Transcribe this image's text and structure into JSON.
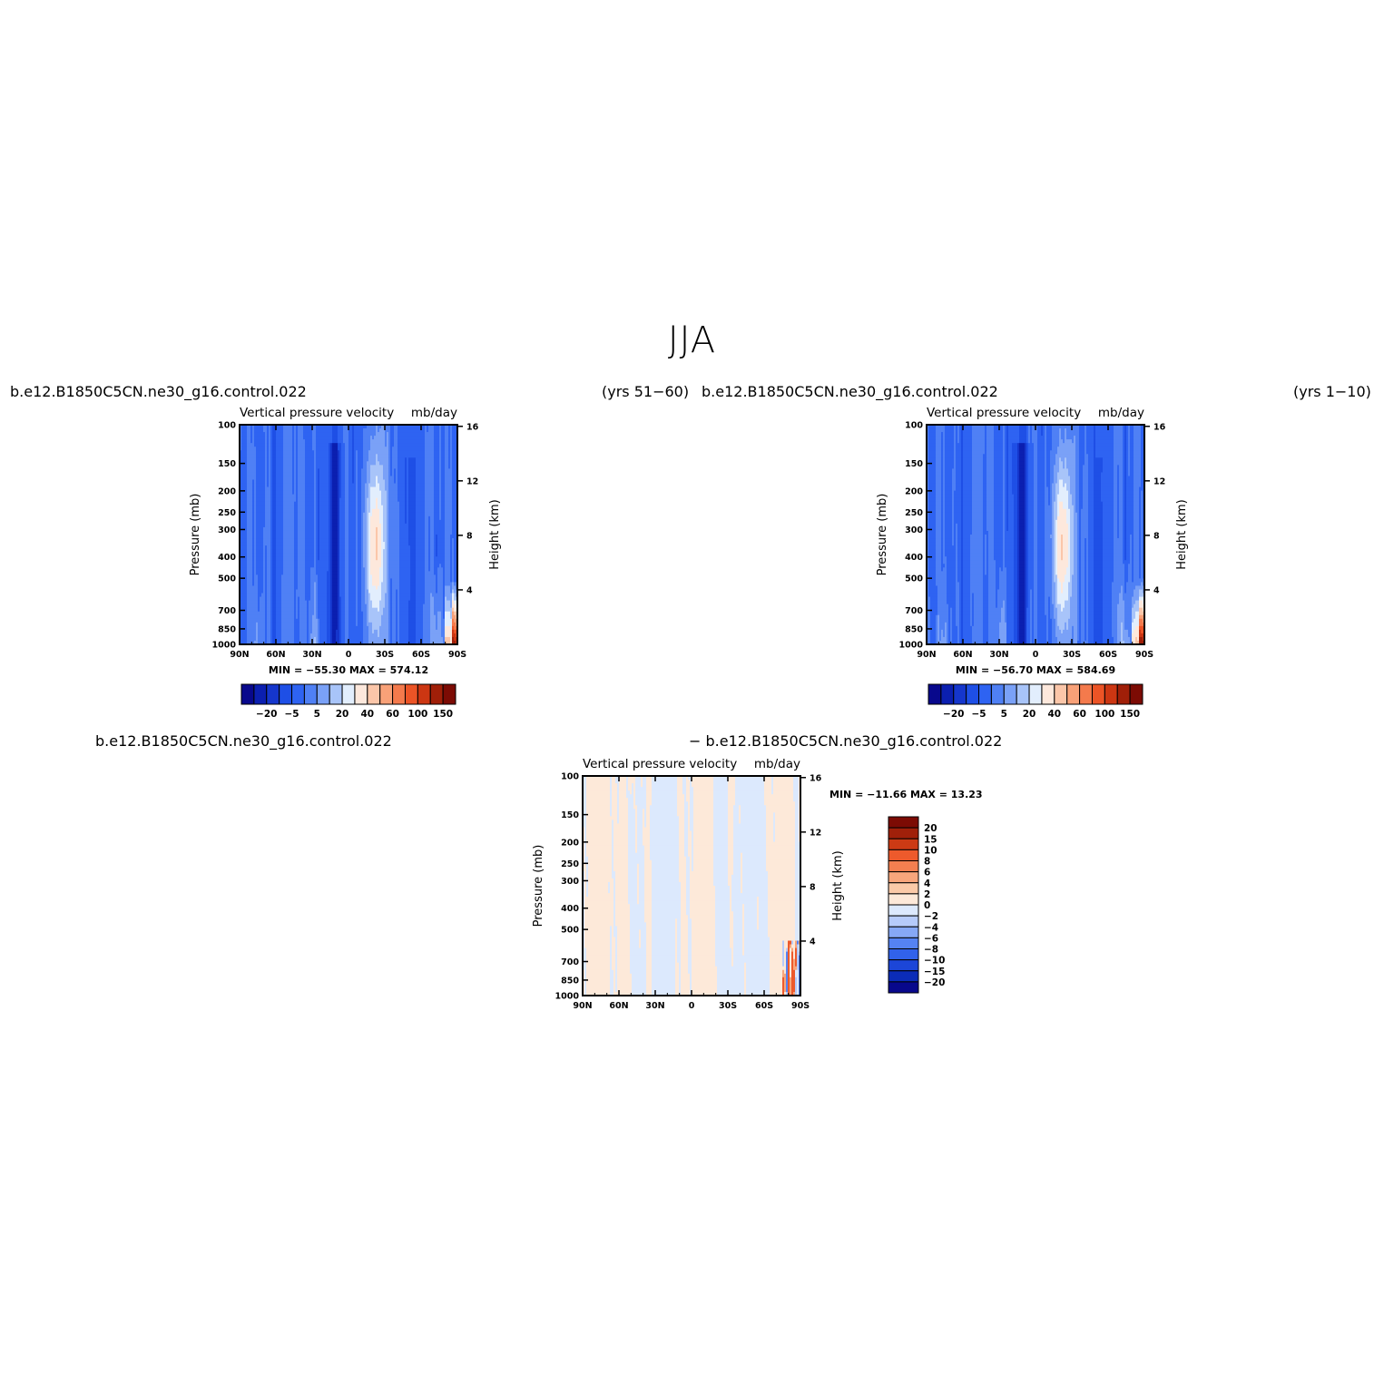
{
  "page": {
    "title": "JJA"
  },
  "colors": {
    "full_scale": [
      "#08088c",
      "#0b1fb0",
      "#1536cc",
      "#1e4fe6",
      "#2e63f2",
      "#4f80f5",
      "#7aa1f7",
      "#a8c4f9",
      "#e2eefd",
      "#fde8dc",
      "#fbc6a9",
      "#f8a178",
      "#f47a4c",
      "#ec5426",
      "#cc3612",
      "#a01f08",
      "#7c0b04"
    ],
    "diff_scale": [
      "#08088c",
      "#0b2cb8",
      "#1c46d8",
      "#3162ea",
      "#5583f3",
      "#86a8f6",
      "#b6cbfa",
      "#dce9fd",
      "#fde9d9",
      "#fbcaa8",
      "#f8a67c",
      "#f47f50",
      "#ed5a2c",
      "#cc3a14",
      "#a0200a",
      "#7c0b04"
    ]
  },
  "chart_data": [
    {
      "type": "heatmap",
      "id": "panel-left",
      "case": "b.e12.B1850C5CN.ne30_g16.control.022",
      "period": "(yrs 51−60)",
      "variable": "Vertical pressure velocity",
      "units": "mb/day",
      "ylabel": "Pressure (mb)",
      "y2label": "Height (km)",
      "x_ticks": [
        "90N",
        "60N",
        "30N",
        "0",
        "30S",
        "60S",
        "90S"
      ],
      "y_ticks": [
        "100",
        "150",
        "200",
        "250",
        "300",
        "400",
        "500",
        "700",
        "850",
        "1000"
      ],
      "y2_ticks": [
        "16",
        "12",
        "8",
        "4"
      ],
      "stats": {
        "min_label": "MIN =",
        "min": "−55.30",
        "max_label": "MAX =",
        "max": "574.12"
      },
      "colorbar_labels": [
        "−20",
        "−5",
        "5",
        "20",
        "40",
        "60",
        "100",
        "150"
      ],
      "features": "strong ascent (blue) near 10N; descent (light) 15–40S; red maximum at 80–90S below 700 mb"
    },
    {
      "type": "heatmap",
      "id": "panel-right",
      "case": "b.e12.B1850C5CN.ne30_g16.control.022",
      "period": "(yrs 1−10)",
      "variable": "Vertical pressure velocity",
      "units": "mb/day",
      "ylabel": "Pressure (mb)",
      "y2label": "Height (km)",
      "x_ticks": [
        "90N",
        "60N",
        "30N",
        "0",
        "30S",
        "60S",
        "90S"
      ],
      "y_ticks": [
        "100",
        "150",
        "200",
        "250",
        "300",
        "400",
        "500",
        "700",
        "850",
        "1000"
      ],
      "y2_ticks": [
        "16",
        "12",
        "8",
        "4"
      ],
      "stats": {
        "min_label": "MIN =",
        "min": "−56.70",
        "max_label": "MAX =",
        "max": "584.69"
      },
      "colorbar_labels": [
        "−20",
        "−5",
        "5",
        "20",
        "40",
        "60",
        "100",
        "150"
      ]
    },
    {
      "type": "heatmap",
      "id": "panel-diff",
      "case_a": "b.e12.B1850C5CN.ne30_g16.control.022",
      "case_b": "− b.e12.B1850C5CN.ne30_g16.control.022",
      "variable": "Vertical pressure velocity",
      "units": "mb/day",
      "ylabel": "Pressure (mb)",
      "y2label": "Height (km)",
      "x_ticks": [
        "90N",
        "60N",
        "30N",
        "0",
        "30S",
        "60S",
        "90S"
      ],
      "y_ticks": [
        "100",
        "150",
        "200",
        "250",
        "300",
        "400",
        "500",
        "700",
        "850",
        "1000"
      ],
      "y2_ticks": [
        "16",
        "12",
        "8",
        "4"
      ],
      "stats": {
        "min_label": "MIN =",
        "min": "−11.66",
        "max_label": "MAX =",
        "max": "13.23"
      },
      "colorbar_labels": [
        "20",
        "15",
        "10",
        "8",
        "6",
        "4",
        "2",
        "0",
        "−2",
        "−4",
        "−6",
        "−8",
        "−10",
        "−15",
        "−20"
      ]
    }
  ]
}
